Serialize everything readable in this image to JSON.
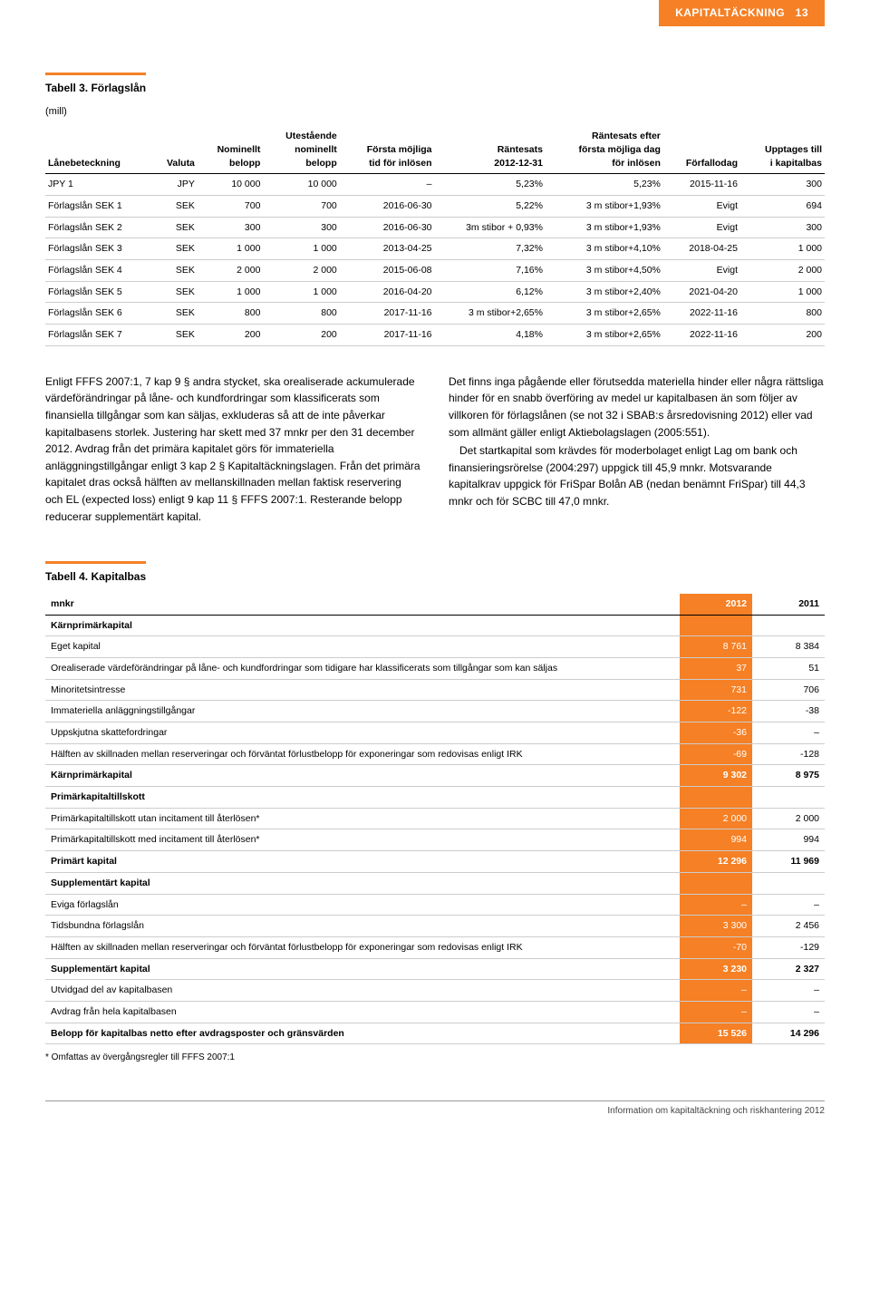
{
  "header": {
    "tab": "KAPITALTÄCKNING",
    "page_num": "13"
  },
  "table3": {
    "title": "Tabell 3. Förlagslån",
    "subhead": "(mill)",
    "columns": [
      "Lånebeteckning",
      "Valuta",
      "Nominellt belopp",
      "Utestående nominellt belopp",
      "Första möjliga tid för inlösen",
      "Räntesats 2012-12-31",
      "Räntesats efter första möjliga dag för inlösen",
      "Förfallodag",
      "Upptages till i kapitalbas"
    ],
    "rows": [
      [
        "JPY 1",
        "JPY",
        "10 000",
        "10 000",
        "–",
        "5,23%",
        "5,23%",
        "2015-11-16",
        "300"
      ],
      [
        "Förlagslån SEK 1",
        "SEK",
        "700",
        "700",
        "2016-06-30",
        "5,22%",
        "3 m stibor+1,93%",
        "Evigt",
        "694"
      ],
      [
        "Förlagslån SEK 2",
        "SEK",
        "300",
        "300",
        "2016-06-30",
        "3m stibor + 0,93%",
        "3 m stibor+1,93%",
        "Evigt",
        "300"
      ],
      [
        "Förlagslån SEK 3",
        "SEK",
        "1 000",
        "1 000",
        "2013-04-25",
        "7,32%",
        "3 m stibor+4,10%",
        "2018-04-25",
        "1 000"
      ],
      [
        "Förlagslån SEK 4",
        "SEK",
        "2 000",
        "2 000",
        "2015-06-08",
        "7,16%",
        "3 m stibor+4,50%",
        "Evigt",
        "2 000"
      ],
      [
        "Förlagslån SEK 5",
        "SEK",
        "1 000",
        "1 000",
        "2016-04-20",
        "6,12%",
        "3 m stibor+2,40%",
        "2021-04-20",
        "1 000"
      ],
      [
        "Förlagslån SEK 6",
        "SEK",
        "800",
        "800",
        "2017-11-16",
        "3 m stibor+2,65%",
        "3 m stibor+2,65%",
        "2022-11-16",
        "800"
      ],
      [
        "Förlagslån SEK 7",
        "SEK",
        "200",
        "200",
        "2017-11-16",
        "4,18%",
        "3 m stibor+2,65%",
        "2022-11-16",
        "200"
      ]
    ]
  },
  "body": {
    "left": "Enligt FFFS 2007:1, 7 kap 9 § andra stycket, ska orealiserade ackumulerade värdeförändringar på låne- och kundfordringar som klassificerats som finansiella tillgångar som kan säljas, exkluderas så att de inte påverkar kapitalbasens storlek. Justering har skett med 37 mnkr per den 31 december 2012. Avdrag från det primära kapitalet görs för immateriella anläggningstillgångar enligt 3 kap 2 § Kapitaltäckningslagen. Från det primära kapitalet dras också hälften av mellanskillnaden mellan faktisk reservering och EL (expected loss) enligt 9 kap 11 § FFFS 2007:1. Resterande belopp reducerar supplementärt kapital.",
    "right_p1": "Det finns inga pågående eller förutsedda materiella hinder eller några rättsliga hinder för en snabb överföring av medel ur kapitalbasen än som följer av villkoren för förlagslånen (se not 32 i SBAB:s årsredovisning 2012) eller vad som allmänt gäller enligt Aktiebolagslagen (2005:551).",
    "right_p2": "Det startkapital som krävdes för moderbolaget enligt Lag om bank och finansieringsrörelse (2004:297) uppgick till 45,9 mnkr. Motsvarande kapitalkrav uppgick för FriSpar Bolån AB (nedan benämnt FriSpar) till 44,3 mnkr och för SCBC till 47,0 mnkr."
  },
  "table4": {
    "title": "Tabell 4. Kapitalbas",
    "head": [
      "mnkr",
      "2012",
      "2011"
    ],
    "rows": [
      {
        "label": "Kärnprimärkapital",
        "v1": "",
        "v2": "",
        "bold": true
      },
      {
        "label": "Eget kapital",
        "v1": "8 761",
        "v2": "8 384"
      },
      {
        "label": "Orealiserade värdeförändringar på låne- och kundfordringar som tidigare har klassificerats som tillgångar som kan säljas",
        "v1": "37",
        "v2": "51"
      },
      {
        "label": "Minoritetsintresse",
        "v1": "731",
        "v2": "706"
      },
      {
        "label": "Immateriella anläggningstillgångar",
        "v1": "-122",
        "v2": "-38"
      },
      {
        "label": "Uppskjutna skattefordringar",
        "v1": "-36",
        "v2": "–"
      },
      {
        "label": "Hälften av skillnaden mellan reserveringar och förväntat förlustbelopp för exponeringar som redovisas enligt IRK",
        "v1": "-69",
        "v2": "-128"
      },
      {
        "label": "Kärnprimärkapital",
        "v1": "9 302",
        "v2": "8 975",
        "bold": true
      },
      {
        "label": "Primärkapitaltillskott",
        "v1": "",
        "v2": "",
        "bold": true
      },
      {
        "label": "Primärkapitaltillskott utan incitament till återlösen*",
        "v1": "2 000",
        "v2": "2 000"
      },
      {
        "label": "Primärkapitaltillskott med incitament till återlösen*",
        "v1": "994",
        "v2": "994"
      },
      {
        "label": "Primärt kapital",
        "v1": "12 296",
        "v2": "11 969",
        "bold": true
      },
      {
        "label": "Supplementärt kapital",
        "v1": "",
        "v2": "",
        "bold": true
      },
      {
        "label": "Eviga förlagslån",
        "v1": "–",
        "v2": "–"
      },
      {
        "label": "Tidsbundna förlagslån",
        "v1": "3 300",
        "v2": "2 456"
      },
      {
        "label": "Hälften av skillnaden mellan reserveringar och förväntat förlustbelopp för exponeringar som redovisas enligt IRK",
        "v1": "-70",
        "v2": "-129"
      },
      {
        "label": "Supplementärt kapital",
        "v1": "3 230",
        "v2": "2 327",
        "bold": true
      },
      {
        "label": "Utvidgad del av kapitalbasen",
        "v1": "–",
        "v2": "–"
      },
      {
        "label": "Avdrag från hela kapitalbasen",
        "v1": "–",
        "v2": "–"
      },
      {
        "label": "Belopp för kapitalbas netto efter avdragsposter och gränsvärden",
        "v1": "15 526",
        "v2": "14 296",
        "bold": true
      }
    ],
    "footnote": "* Omfattas av övergångsregler till FFFS 2007:1"
  },
  "footer": "Information om kapitaltäckning och riskhantering 2012"
}
